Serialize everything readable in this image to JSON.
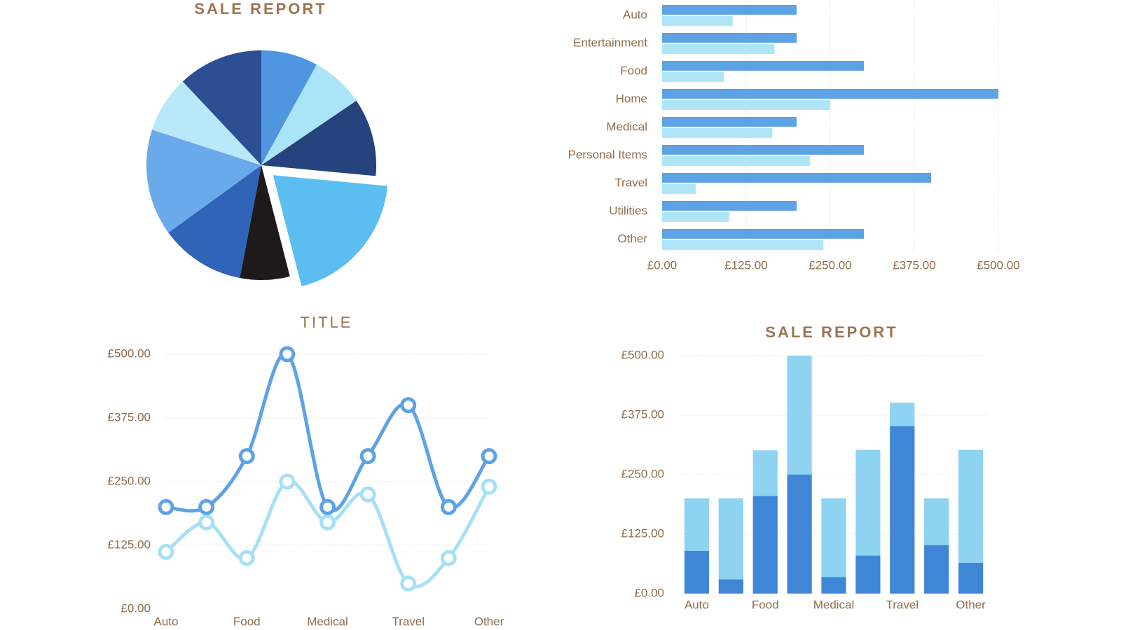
{
  "chart_data": [
    {
      "type": "pie",
      "title": "SALE REPORT",
      "values": [
        8,
        7.5,
        11,
        19.5,
        7,
        12,
        15,
        8,
        12
      ],
      "colors": [
        "#4f95e0",
        "#a9e4f7",
        "#26437e",
        "#5cbdf0",
        "#1e1a1a",
        "#2f64b8",
        "#6aa9ea",
        "#b9e9f8",
        "#2c4f94"
      ],
      "exploded": 3
    },
    {
      "type": "hbar",
      "categories": [
        "Auto",
        "Entertainment",
        "Food",
        "Home",
        "Medical",
        "Personal Items",
        "Travel",
        "Utilities",
        "Other"
      ],
      "series": [
        {
          "color": "#5ea2e6",
          "values": [
            200,
            200,
            300,
            500,
            200,
            300,
            400,
            200,
            300
          ]
        },
        {
          "color": "#aee6f8",
          "values": [
            105,
            167,
            92,
            250,
            164,
            220,
            50,
            100,
            240
          ]
        }
      ],
      "xlim": [
        0,
        500
      ],
      "xticks": [
        {
          "value": 0,
          "label": "£0.00"
        },
        {
          "value": 125,
          "label": "£125.00"
        },
        {
          "value": 250,
          "label": "£250.00"
        },
        {
          "value": 375,
          "label": "£375.00"
        },
        {
          "value": 500,
          "label": "£500.00"
        }
      ],
      "grid": true
    },
    {
      "type": "line",
      "title": "TITLE",
      "categories": [
        "Auto",
        null,
        "Food",
        null,
        "Medical",
        null,
        "Travel",
        null,
        "Other"
      ],
      "series": [
        {
          "color": "#5ea2e6",
          "values": [
            200,
            200,
            300,
            500,
            200,
            300,
            400,
            200,
            300
          ]
        },
        {
          "color": "#a6e0f6",
          "values": [
            112,
            170,
            100,
            250,
            170,
            225,
            50,
            100,
            240
          ]
        }
      ],
      "ylim": [
        0,
        500
      ],
      "yticks": [
        {
          "value": 0,
          "label": "£0.00"
        },
        {
          "value": 125,
          "label": "£125.00"
        },
        {
          "value": 250,
          "label": "£250.00"
        },
        {
          "value": 375,
          "label": "£375.00"
        },
        {
          "value": 500,
          "label": "£500.00"
        }
      ],
      "grid": true
    },
    {
      "type": "stacked",
      "title": "SALE REPORT",
      "categories": [
        "Auto",
        null,
        "Food",
        null,
        "Medical",
        null,
        "Travel",
        null,
        "Other"
      ],
      "series": [
        {
          "color": "#3f86d6",
          "values": [
            90,
            30,
            205,
            250,
            35,
            80,
            352,
            102,
            65
          ]
        },
        {
          "color": "#8fd3f2",
          "values": [
            110,
            170,
            96,
            250,
            165,
            222,
            49,
            98,
            237
          ]
        }
      ],
      "ylim": [
        0,
        500
      ],
      "yticks": [
        {
          "value": 0,
          "label": "£0.00"
        },
        {
          "value": 125,
          "label": "£125.00"
        },
        {
          "value": 250,
          "label": "£250.00"
        },
        {
          "value": 375,
          "label": "£375.00"
        },
        {
          "value": 500,
          "label": "£500.00"
        }
      ],
      "grid": true
    }
  ]
}
